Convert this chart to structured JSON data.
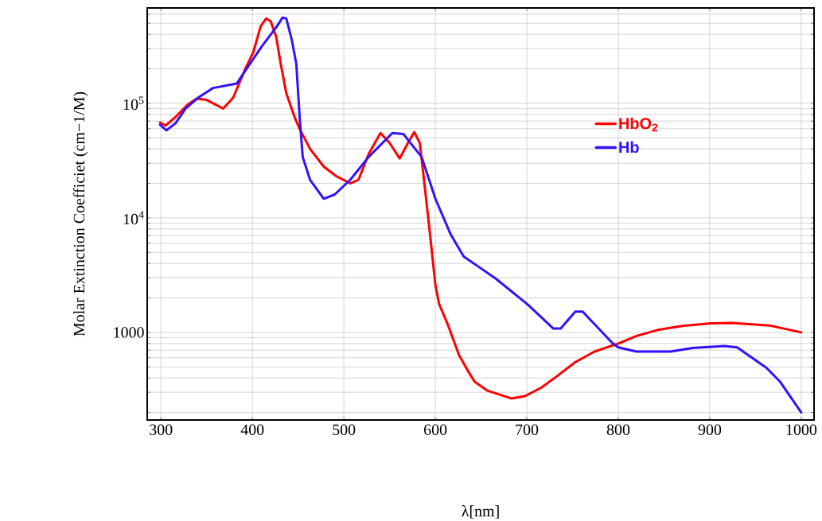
{
  "chart_data": {
    "type": "line",
    "xlabel": "λ[nm]",
    "ylabel": "Molar Extinction Coefficiet (cm−1/M)",
    "log": "y",
    "grid": true,
    "legend": "right",
    "line_style": "solid",
    "marker": "none",
    "xlim": [
      285,
      1014
    ],
    "ylim": [
      172,
      680000
    ],
    "xticks": [
      300,
      400,
      500,
      600,
      700,
      800,
      900,
      1000
    ],
    "yticks": [
      {
        "value": 200,
        "label": null
      },
      {
        "value": 300,
        "label": null
      },
      {
        "value": 400,
        "label": null
      },
      {
        "value": 500,
        "label": null
      },
      {
        "value": 600,
        "label": null
      },
      {
        "value": 700,
        "label": null
      },
      {
        "value": 800,
        "label": null
      },
      {
        "value": 900,
        "label": null
      },
      1000,
      {
        "value": 2000,
        "label": null
      },
      {
        "value": 3000,
        "label": null
      },
      {
        "value": 4000,
        "label": null
      },
      {
        "value": 5000,
        "label": null
      },
      {
        "value": 6000,
        "label": null
      },
      {
        "value": 7000,
        "label": null
      },
      {
        "value": 8000,
        "label": null
      },
      {
        "value": 9000,
        "label": null
      },
      {
        "value": 10000,
        "label": "10$^{4}$"
      },
      {
        "value": 20000,
        "label": null
      },
      {
        "value": 30000,
        "label": null
      },
      {
        "value": 40000,
        "label": null
      },
      {
        "value": 50000,
        "label": null
      },
      {
        "value": 60000,
        "label": null
      },
      {
        "value": 70000,
        "label": null
      },
      {
        "value": 80000,
        "label": null
      },
      {
        "value": 90000,
        "label": null
      },
      {
        "value": 100000,
        "label": "10$^{5}$"
      },
      {
        "value": 200000,
        "label": null
      },
      {
        "value": 300000,
        "label": null
      },
      {
        "value": 400000,
        "label": null
      },
      {
        "value": 500000,
        "label": null
      },
      {
        "value": 600000,
        "label": null
      }
    ],
    "series": [
      {
        "name": "HbO$_{2}$",
        "color": "#ff0000",
        "x": [
          299,
          305,
          316,
          329,
          339,
          350,
          368,
          379,
          391,
          401,
          409,
          415,
          420,
          426,
          431,
          437,
          446,
          452,
          463,
          478,
          492,
          507,
          516,
          527,
          540,
          550,
          561,
          570,
          577,
          583,
          588,
          594,
          600,
          604,
          614,
          626,
          635,
          643,
          657,
          683,
          698,
          716,
          733,
          753,
          774,
          800,
          820,
          843,
          870,
          901,
          924,
          965,
          988,
          1000
        ],
        "values": [
          68000,
          64000,
          76000,
          97000,
          110000,
          107000,
          90000,
          112000,
          190000,
          280000,
          470000,
          550000,
          520000,
          380000,
          220000,
          123000,
          76000,
          59000,
          40000,
          28000,
          23000,
          20000,
          21500,
          36000,
          55000,
          45000,
          33000,
          45000,
          56000,
          45000,
          20000,
          7400,
          2600,
          1780,
          1150,
          630,
          470,
          370,
          310,
          265,
          278,
          330,
          415,
          550,
          680,
          800,
          930,
          1050,
          1140,
          1200,
          1210,
          1150,
          1050,
          1000
        ]
      },
      {
        "name": "Hb",
        "color": "#3311ff",
        "x": [
          299,
          306,
          316,
          327,
          342,
          357,
          383,
          397,
          411,
          426,
          433,
          437,
          443,
          448,
          452,
          455,
          463,
          478,
          490,
          507,
          527,
          553,
          565,
          585,
          600,
          617,
          631,
          646,
          666,
          701,
          729,
          737,
          753,
          761,
          794,
          800,
          820,
          857,
          881,
          916,
          930,
          962,
          977,
          1000
        ],
        "values": [
          65000,
          58000,
          67000,
          90000,
          114000,
          136000,
          149000,
          220000,
          320000,
          460000,
          560000,
          550000,
          360000,
          220000,
          69000,
          34000,
          21500,
          14700,
          16000,
          21500,
          34000,
          55000,
          54000,
          34000,
          14700,
          7100,
          4600,
          3800,
          2950,
          1750,
          1080,
          1080,
          1520,
          1520,
          800,
          740,
          680,
          680,
          730,
          760,
          740,
          490,
          370,
          200
        ]
      }
    ]
  }
}
